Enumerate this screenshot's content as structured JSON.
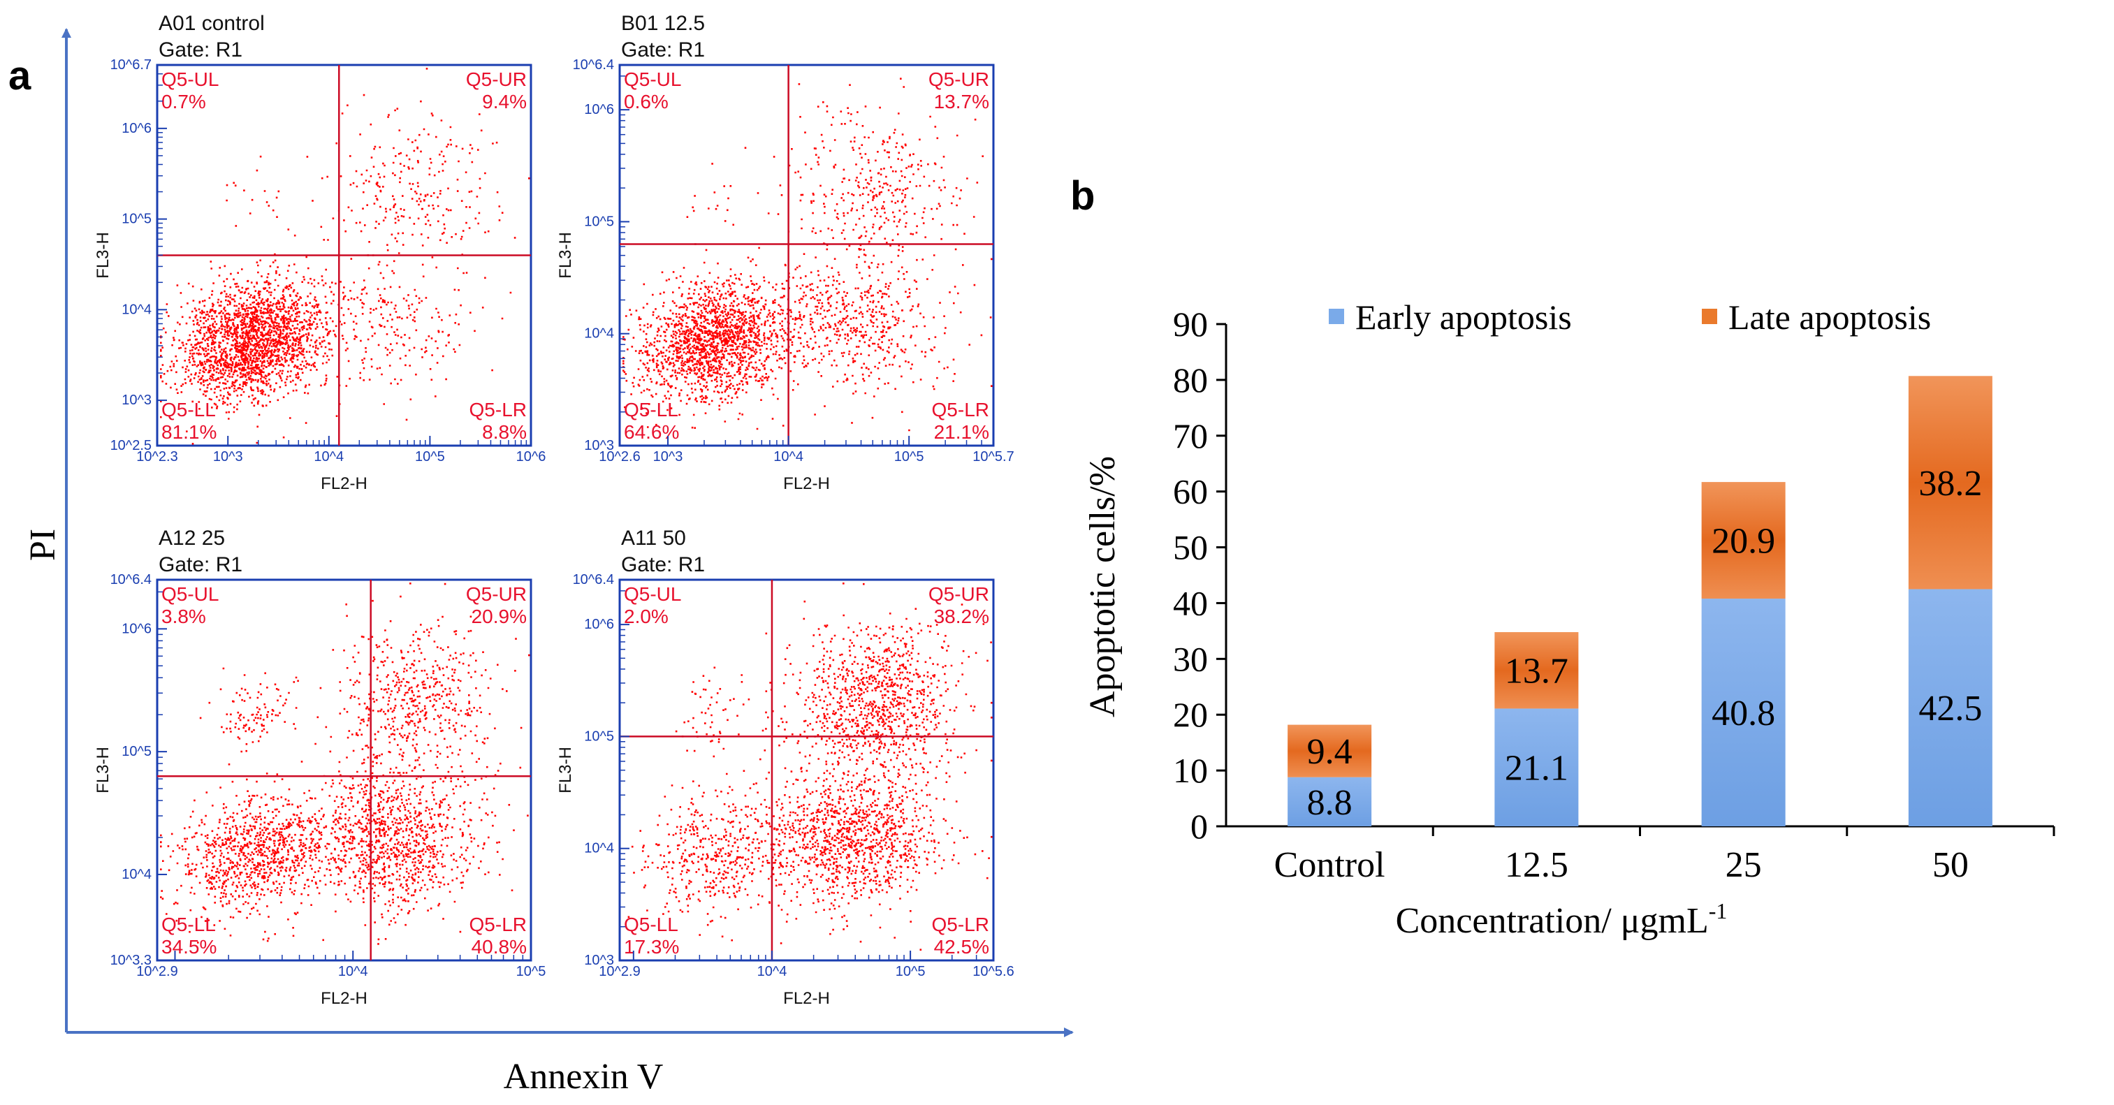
{
  "panel_a": {
    "label": "a",
    "y_axis_label": "PI",
    "x_axis_label": "Annexin V",
    "plots": [
      {
        "title": "A01 control",
        "gate": "Gate: R1",
        "x_label": "FL2-H",
        "y_label": "FL3-H",
        "x_ticks": [
          "10^2.3",
          "10^3",
          "10^4",
          "10^5",
          "10^6"
        ],
        "y_ticks": [
          "10^2.5",
          "10^3",
          "10^4",
          "10^5",
          "10^6",
          "10^6.7"
        ],
        "gate_x_log": 4.1,
        "gate_y_log": 4.6,
        "quadrants": {
          "UL": {
            "name": "Q5-UL",
            "value": "0.7%"
          },
          "UR": {
            "name": "Q5-UR",
            "value": "9.4%"
          },
          "LL": {
            "name": "Q5-LL",
            "value": "81.1%"
          },
          "LR": {
            "name": "Q5-LR",
            "value": "8.8%"
          }
        }
      },
      {
        "title": "B01 12.5",
        "gate": "Gate: R1",
        "x_label": "FL2-H",
        "y_label": "FL3-H",
        "x_ticks": [
          "10^2.6",
          "10^3",
          "10^4",
          "10^5",
          "10^5.7"
        ],
        "y_ticks": [
          "10^3",
          "10^4",
          "10^5",
          "10^6",
          "10^6.4"
        ],
        "gate_x_log": 4.0,
        "gate_y_log": 4.8,
        "quadrants": {
          "UL": {
            "name": "Q5-UL",
            "value": "0.6%"
          },
          "UR": {
            "name": "Q5-UR",
            "value": "13.7%"
          },
          "LL": {
            "name": "Q5-LL",
            "value": "64.6%"
          },
          "LR": {
            "name": "Q5-LR",
            "value": "21.1%"
          }
        }
      },
      {
        "title": "A12 25",
        "gate": "Gate: R1",
        "x_label": "FL2-H",
        "y_label": "FL3-H",
        "x_ticks": [
          "10^2.9",
          "10^4",
          "10^5"
        ],
        "y_ticks": [
          "10^3.3",
          "10^4",
          "10^5",
          "10^6",
          "10^6.4"
        ],
        "gate_x_log": 4.1,
        "gate_y_log": 4.8,
        "quadrants": {
          "UL": {
            "name": "Q5-UL",
            "value": "3.8%"
          },
          "UR": {
            "name": "Q5-UR",
            "value": "20.9%"
          },
          "LL": {
            "name": "Q5-LL",
            "value": "34.5%"
          },
          "LR": {
            "name": "Q5-LR",
            "value": "40.8%"
          }
        }
      },
      {
        "title": "A11 50",
        "gate": "Gate: R1",
        "x_label": "FL2-H",
        "y_label": "FL3-H",
        "x_ticks": [
          "10^2.9",
          "10^4",
          "10^5",
          "10^5.6"
        ],
        "y_ticks": [
          "10^3",
          "10^4",
          "10^5",
          "10^6",
          "10^6.4"
        ],
        "gate_x_log": 4.0,
        "gate_y_log": 5.0,
        "quadrants": {
          "UL": {
            "name": "Q5-UL",
            "value": "2.0%"
          },
          "UR": {
            "name": "Q5-UR",
            "value": "38.2%"
          },
          "LL": {
            "name": "Q5-LL",
            "value": "17.3%"
          },
          "LR": {
            "name": "Q5-LR",
            "value": "42.5%"
          }
        }
      }
    ]
  },
  "chart_data": {
    "type": "bar",
    "stacked": true,
    "label": "b",
    "title": "",
    "categories": [
      "Control",
      "12.5",
      "25",
      "50"
    ],
    "series": [
      {
        "name": "Early apoptosis",
        "color": "#7aaae9",
        "values": [
          8.8,
          21.1,
          40.8,
          42.5
        ]
      },
      {
        "name": "Late apoptosis",
        "color": "#ea7a2c",
        "values": [
          9.4,
          13.7,
          20.9,
          38.2
        ]
      }
    ],
    "xlabel": "Concentration/ μgmL",
    "xlabel_superscript": "-1",
    "ylabel": "Apoptotic cells/%",
    "ylim": [
      0,
      90
    ],
    "yticks": [
      0,
      10,
      20,
      30,
      40,
      50,
      60,
      70,
      80,
      90
    ],
    "legend_position": "top",
    "grid": false
  },
  "colors": {
    "scatter": "#ff0000",
    "quadrant_text": "#e8112d",
    "gate_line": "#cc0a24",
    "plot_frame": "#1a3eb0",
    "axis_arrow": "#4a72c4"
  }
}
